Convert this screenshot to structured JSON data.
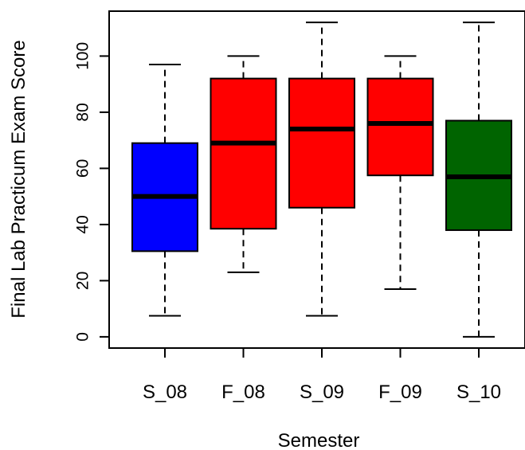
{
  "chart_data": {
    "type": "box",
    "title": "",
    "xlabel": "Semester",
    "ylabel": "Final Lab Practicum Exam Score",
    "ylim": [
      -4,
      116
    ],
    "yticks": [
      0,
      20,
      40,
      60,
      80,
      100
    ],
    "grid": false,
    "legend": "none",
    "categories": [
      "S_08",
      "F_08",
      "S_09",
      "F_09",
      "S_10"
    ],
    "boxes": [
      {
        "category": "S_08",
        "min": 7.5,
        "q1": 30.5,
        "median": 50,
        "q3": 69,
        "max": 97,
        "color": "#0000FF"
      },
      {
        "category": "F_08",
        "min": 23,
        "q1": 38.5,
        "median": 69,
        "q3": 92,
        "max": 100,
        "color": "#FF0000"
      },
      {
        "category": "S_09",
        "min": 7.5,
        "q1": 46,
        "median": 74,
        "q3": 92,
        "max": 112,
        "color": "#FF0000"
      },
      {
        "category": "F_09",
        "min": 17,
        "q1": 57.5,
        "median": 76,
        "q3": 92,
        "max": 100,
        "color": "#FF0000"
      },
      {
        "category": "S_10",
        "min": 0,
        "q1": 38,
        "median": 57,
        "q3": 77,
        "max": 112,
        "color": "#006400"
      }
    ]
  }
}
